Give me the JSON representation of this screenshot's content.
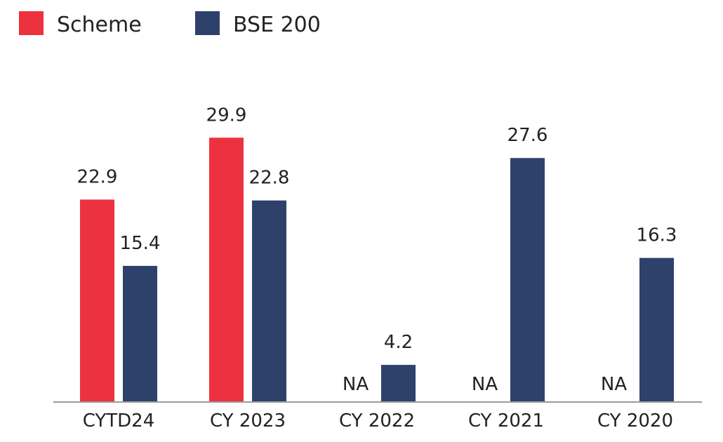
{
  "chart_data": {
    "type": "bar",
    "categories": [
      "CYTD24",
      "CY 2023",
      "CY 2022",
      "CY 2021",
      "CY 2020"
    ],
    "series": [
      {
        "name": "Scheme",
        "color": "#ed323f",
        "values": [
          22.9,
          29.9,
          null,
          null,
          null
        ],
        "labels": [
          "22.9",
          "29.9",
          "NA",
          "NA",
          "NA"
        ]
      },
      {
        "name": "BSE 200",
        "color": "#2e416b",
        "values": [
          15.4,
          22.8,
          4.2,
          27.6,
          16.3
        ],
        "labels": [
          "15.4",
          "22.8",
          "4.2",
          "27.6",
          "16.3"
        ]
      }
    ],
    "ylim": [
      0,
      35
    ],
    "grid": false,
    "legend_position": "top-left",
    "axis_color": "#9a9a9a"
  }
}
